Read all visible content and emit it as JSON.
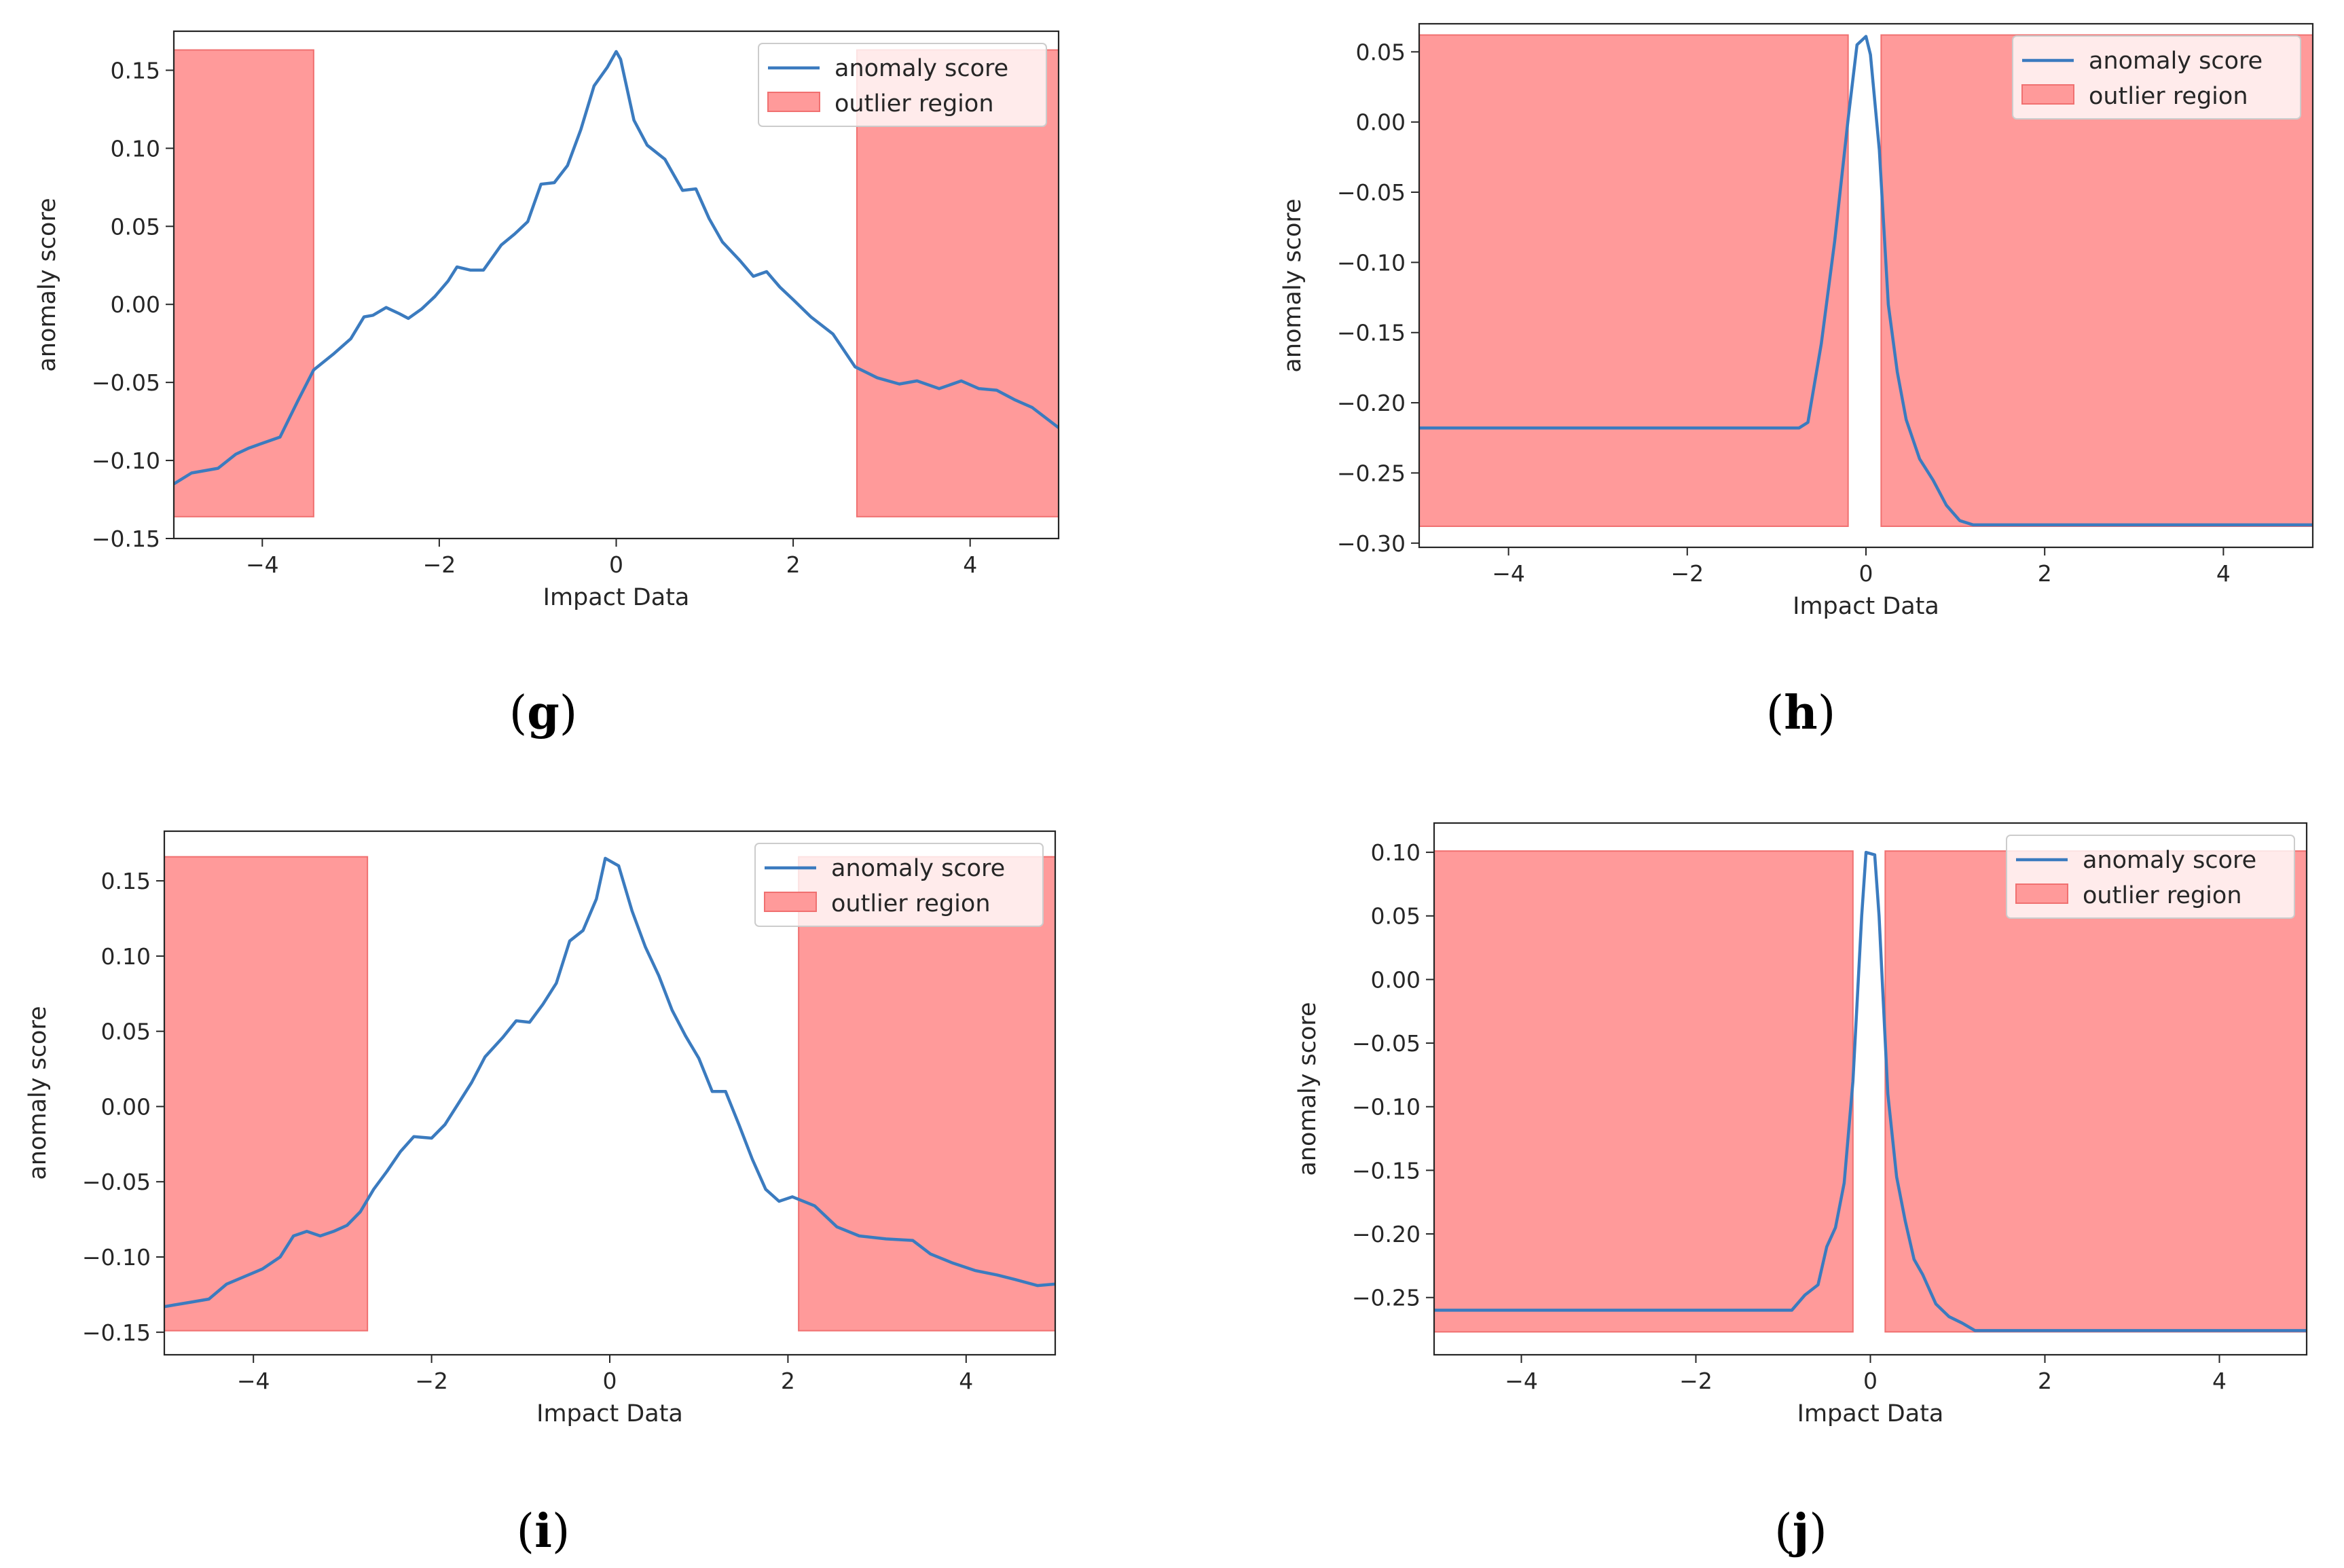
{
  "figure": {
    "captions": [
      "g",
      "h",
      "i",
      "j"
    ],
    "colors": {
      "line": "#3b7bbf",
      "region_fill": "#ff9a9a",
      "region_edge": "#f07070",
      "axis": "#262626",
      "legend_edge": "#cccccc"
    }
  },
  "chart_data": [
    {
      "type": "line",
      "caption": "g",
      "xlabel": "Impact Data",
      "ylabel": "anomaly score",
      "xlim": [
        -5,
        5
      ],
      "ylim": [
        -0.15,
        0.175
      ],
      "xticks": [
        -4,
        -2,
        0,
        2,
        4
      ],
      "xtick_labels": [
        "−4",
        "−2",
        "0",
        "2",
        "4"
      ],
      "yticks": [
        -0.15,
        -0.1,
        -0.05,
        0.0,
        0.05,
        0.1,
        0.15
      ],
      "ytick_labels": [
        "−0.15",
        "−0.10",
        "−0.05",
        "0.00",
        "0.05",
        "0.10",
        "0.15"
      ],
      "legend": [
        "anomaly score",
        "outlier region"
      ],
      "legend_position": "top-right",
      "outlier_regions": [
        {
          "x0": -5.0,
          "x1": -3.42,
          "y0": -0.136,
          "y1": 0.163
        },
        {
          "x0": 2.72,
          "x1": 5.0,
          "y0": -0.136,
          "y1": 0.163
        }
      ],
      "series": [
        {
          "name": "anomaly score",
          "x": [
            -5.0,
            -4.8,
            -4.5,
            -4.3,
            -4.15,
            -4.0,
            -3.8,
            -3.6,
            -3.42,
            -3.2,
            -3.0,
            -2.85,
            -2.75,
            -2.6,
            -2.45,
            -2.35,
            -2.2,
            -2.05,
            -1.9,
            -1.8,
            -1.65,
            -1.5,
            -1.3,
            -1.15,
            -1.0,
            -0.85,
            -0.7,
            -0.55,
            -0.4,
            -0.25,
            -0.1,
            0.0,
            0.05,
            0.2,
            0.35,
            0.55,
            0.75,
            0.9,
            1.05,
            1.2,
            1.4,
            1.55,
            1.7,
            1.85,
            2.0,
            2.2,
            2.45,
            2.7,
            2.95,
            3.2,
            3.4,
            3.65,
            3.9,
            4.1,
            4.3,
            4.5,
            4.7,
            5.0
          ],
          "y": [
            -0.115,
            -0.108,
            -0.105,
            -0.096,
            -0.092,
            -0.089,
            -0.085,
            -0.062,
            -0.042,
            -0.032,
            -0.022,
            -0.008,
            -0.007,
            -0.002,
            -0.006,
            -0.009,
            -0.003,
            0.005,
            0.015,
            0.024,
            0.022,
            0.022,
            0.038,
            0.045,
            0.053,
            0.077,
            0.078,
            0.089,
            0.112,
            0.14,
            0.152,
            0.162,
            0.157,
            0.118,
            0.102,
            0.093,
            0.073,
            0.074,
            0.055,
            0.04,
            0.028,
            0.018,
            0.021,
            0.011,
            0.003,
            -0.008,
            -0.019,
            -0.04,
            -0.047,
            -0.051,
            -0.049,
            -0.054,
            -0.049,
            -0.054,
            -0.055,
            -0.061,
            -0.066,
            -0.079
          ]
        }
      ]
    },
    {
      "type": "line",
      "caption": "h",
      "xlabel": "Impact Data",
      "ylabel": "anomaly score",
      "xlim": [
        -5,
        5
      ],
      "ylim": [
        -0.303,
        0.07
      ],
      "xticks": [
        -4,
        -2,
        0,
        2,
        4
      ],
      "xtick_labels": [
        "−4",
        "−2",
        "0",
        "2",
        "4"
      ],
      "yticks": [
        -0.3,
        -0.25,
        -0.2,
        -0.15,
        -0.1,
        -0.05,
        0.0,
        0.05
      ],
      "ytick_labels": [
        "−0.30",
        "−0.25",
        "−0.20",
        "−0.15",
        "−0.10",
        "−0.05",
        "0.00",
        "0.05"
      ],
      "legend": [
        "anomaly score",
        "outlier region"
      ],
      "legend_position": "top-right",
      "outlier_regions": [
        {
          "x0": -5.0,
          "x1": -0.2,
          "y0": -0.288,
          "y1": 0.062
        },
        {
          "x0": 0.17,
          "x1": 5.0,
          "y0": -0.288,
          "y1": 0.062
        }
      ],
      "series": [
        {
          "name": "anomaly score",
          "x": [
            -5.0,
            -4.0,
            -3.0,
            -2.0,
            -1.0,
            -0.75,
            -0.65,
            -0.5,
            -0.35,
            -0.2,
            -0.1,
            0.0,
            0.05,
            0.15,
            0.25,
            0.35,
            0.45,
            0.6,
            0.75,
            0.9,
            1.05,
            1.2,
            2.0,
            3.0,
            4.0,
            5.0
          ],
          "y": [
            -0.218,
            -0.218,
            -0.218,
            -0.218,
            -0.218,
            -0.218,
            -0.214,
            -0.158,
            -0.085,
            0.002,
            0.055,
            0.061,
            0.048,
            -0.02,
            -0.13,
            -0.178,
            -0.212,
            -0.24,
            -0.255,
            -0.273,
            -0.284,
            -0.287,
            -0.287,
            -0.287,
            -0.287,
            -0.287
          ]
        }
      ]
    },
    {
      "type": "line",
      "caption": "i",
      "xlabel": "Impact Data",
      "ylabel": "anomaly score",
      "xlim": [
        -5,
        5
      ],
      "ylim": [
        -0.165,
        0.183
      ],
      "xticks": [
        -4,
        -2,
        0,
        2,
        4
      ],
      "xtick_labels": [
        "−4",
        "−2",
        "0",
        "2",
        "4"
      ],
      "yticks": [
        -0.15,
        -0.1,
        -0.05,
        0.0,
        0.05,
        0.1,
        0.15
      ],
      "ytick_labels": [
        "−0.15",
        "−0.10",
        "−0.05",
        "0.00",
        "0.05",
        "0.10",
        "0.15"
      ],
      "legend": [
        "anomaly score",
        "outlier region"
      ],
      "legend_position": "top-right",
      "outlier_regions": [
        {
          "x0": -5.0,
          "x1": -2.72,
          "y0": -0.149,
          "y1": 0.166
        },
        {
          "x0": 2.12,
          "x1": 5.0,
          "y0": -0.149,
          "y1": 0.166
        }
      ],
      "series": [
        {
          "name": "anomaly score",
          "x": [
            -5.0,
            -4.7,
            -4.5,
            -4.3,
            -4.1,
            -3.9,
            -3.7,
            -3.55,
            -3.4,
            -3.25,
            -3.1,
            -2.95,
            -2.8,
            -2.65,
            -2.5,
            -2.35,
            -2.2,
            -2.0,
            -1.85,
            -1.7,
            -1.55,
            -1.4,
            -1.2,
            -1.05,
            -0.9,
            -0.75,
            -0.6,
            -0.45,
            -0.3,
            -0.15,
            -0.05,
            0.1,
            0.25,
            0.4,
            0.55,
            0.7,
            0.85,
            1.0,
            1.15,
            1.3,
            1.45,
            1.6,
            1.75,
            1.9,
            2.05,
            2.3,
            2.55,
            2.8,
            3.1,
            3.4,
            3.6,
            3.85,
            4.1,
            4.35,
            4.55,
            4.8,
            5.0
          ],
          "y": [
            -0.133,
            -0.13,
            -0.128,
            -0.118,
            -0.113,
            -0.108,
            -0.1,
            -0.086,
            -0.083,
            -0.086,
            -0.083,
            -0.079,
            -0.07,
            -0.055,
            -0.043,
            -0.03,
            -0.02,
            -0.021,
            -0.012,
            0.002,
            0.016,
            0.033,
            0.046,
            0.057,
            0.056,
            0.068,
            0.082,
            0.11,
            0.117,
            0.138,
            0.165,
            0.16,
            0.13,
            0.106,
            0.087,
            0.064,
            0.047,
            0.032,
            0.01,
            0.01,
            -0.012,
            -0.035,
            -0.055,
            -0.063,
            -0.06,
            -0.066,
            -0.08,
            -0.086,
            -0.088,
            -0.089,
            -0.098,
            -0.104,
            -0.109,
            -0.112,
            -0.115,
            -0.119,
            -0.118
          ]
        }
      ]
    },
    {
      "type": "line",
      "caption": "j",
      "xlabel": "Impact Data",
      "ylabel": "anomaly score",
      "xlim": [
        -5,
        5
      ],
      "ylim": [
        -0.295,
        0.123
      ],
      "xticks": [
        -4,
        -2,
        0,
        2,
        4
      ],
      "xtick_labels": [
        "−4",
        "−2",
        "0",
        "2",
        "4"
      ],
      "yticks": [
        -0.25,
        -0.2,
        -0.15,
        -0.1,
        -0.05,
        0.0,
        0.05,
        0.1
      ],
      "ytick_labels": [
        "−0.25",
        "−0.20",
        "−0.15",
        "−0.10",
        "−0.05",
        "0.00",
        "0.05",
        "0.10"
      ],
      "legend": [
        "anomaly score",
        "outlier region"
      ],
      "legend_position": "top-right",
      "outlier_regions": [
        {
          "x0": -5.0,
          "x1": -0.2,
          "y0": -0.277,
          "y1": 0.101
        },
        {
          "x0": 0.17,
          "x1": 5.0,
          "y0": -0.277,
          "y1": 0.101
        }
      ],
      "series": [
        {
          "name": "anomaly score",
          "x": [
            -5.0,
            -4.0,
            -3.0,
            -2.0,
            -1.0,
            -0.9,
            -0.75,
            -0.6,
            -0.5,
            -0.4,
            -0.3,
            -0.2,
            -0.1,
            -0.05,
            0.05,
            0.1,
            0.2,
            0.3,
            0.4,
            0.5,
            0.6,
            0.75,
            0.9,
            1.05,
            1.2,
            2.0,
            3.0,
            4.0,
            5.0
          ],
          "y": [
            -0.26,
            -0.26,
            -0.26,
            -0.26,
            -0.26,
            -0.26,
            -0.248,
            -0.24,
            -0.21,
            -0.195,
            -0.16,
            -0.08,
            0.05,
            0.1,
            0.098,
            0.05,
            -0.09,
            -0.155,
            -0.19,
            -0.22,
            -0.232,
            -0.255,
            -0.265,
            -0.27,
            -0.276,
            -0.276,
            -0.276,
            -0.276,
            -0.276
          ]
        }
      ]
    }
  ]
}
